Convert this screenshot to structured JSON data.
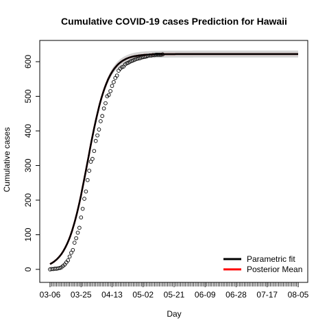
{
  "chart_data": {
    "type": "line",
    "title": "Cumulative COVID-19 cases Prediction for Hawaii",
    "xlabel": "Day",
    "ylabel": "Cumulative cases",
    "x_tick_labels": [
      "03-06",
      "03-25",
      "04-13",
      "05-02",
      "05-21",
      "06-09",
      "06-28",
      "07-17",
      "08-05"
    ],
    "y_ticks": [
      0,
      100,
      200,
      300,
      400,
      500,
      600
    ],
    "xlim_days": [
      0,
      152
    ],
    "ylim": [
      -20,
      650
    ],
    "legend_position": "bottom-right",
    "series": [
      {
        "name": "Parametric fit",
        "color": "#000000",
        "kind": "line"
      },
      {
        "name": "Posterior Mean",
        "color": "#ff0000",
        "kind": "line"
      }
    ],
    "observed_points": {
      "style": "open-circle",
      "color": "#000000",
      "x_days": [
        0,
        1,
        2,
        3,
        4,
        5,
        6,
        7,
        8,
        9,
        10,
        11,
        12,
        13,
        14,
        15,
        16,
        17,
        18,
        19,
        20,
        21,
        22,
        23,
        24,
        25,
        26,
        27,
        28,
        29,
        30,
        31,
        32,
        33,
        34,
        35,
        36,
        37,
        38,
        39,
        40,
        41,
        42,
        43,
        44,
        45,
        46,
        47,
        48,
        49,
        50,
        51,
        52,
        53,
        54,
        55,
        56,
        57,
        58,
        59,
        60,
        61,
        62,
        63,
        64,
        65,
        66,
        67,
        68,
        69
      ],
      "y": [
        0,
        1,
        1,
        2,
        2,
        3,
        4,
        6,
        10,
        14,
        20,
        26,
        37,
        48,
        56,
        77,
        90,
        106,
        120,
        150,
        175,
        204,
        225,
        258,
        285,
        311,
        319,
        342,
        371,
        387,
        404,
        428,
        443,
        465,
        480,
        500,
        504,
        515,
        530,
        541,
        553,
        560,
        574,
        580,
        584,
        586,
        592,
        595,
        597,
        600,
        602,
        604,
        606,
        608,
        609,
        610,
        612,
        613,
        614,
        615,
        617,
        618,
        618,
        619,
        619,
        620,
        620,
        620,
        620,
        621
      ]
    },
    "fit_curve": {
      "model": "logistic",
      "asymptote": 622,
      "midpoint_day": 23,
      "growth_rate": 0.16
    },
    "prediction_band": {
      "color": "#d3d3d3",
      "half_width": 10
    }
  }
}
